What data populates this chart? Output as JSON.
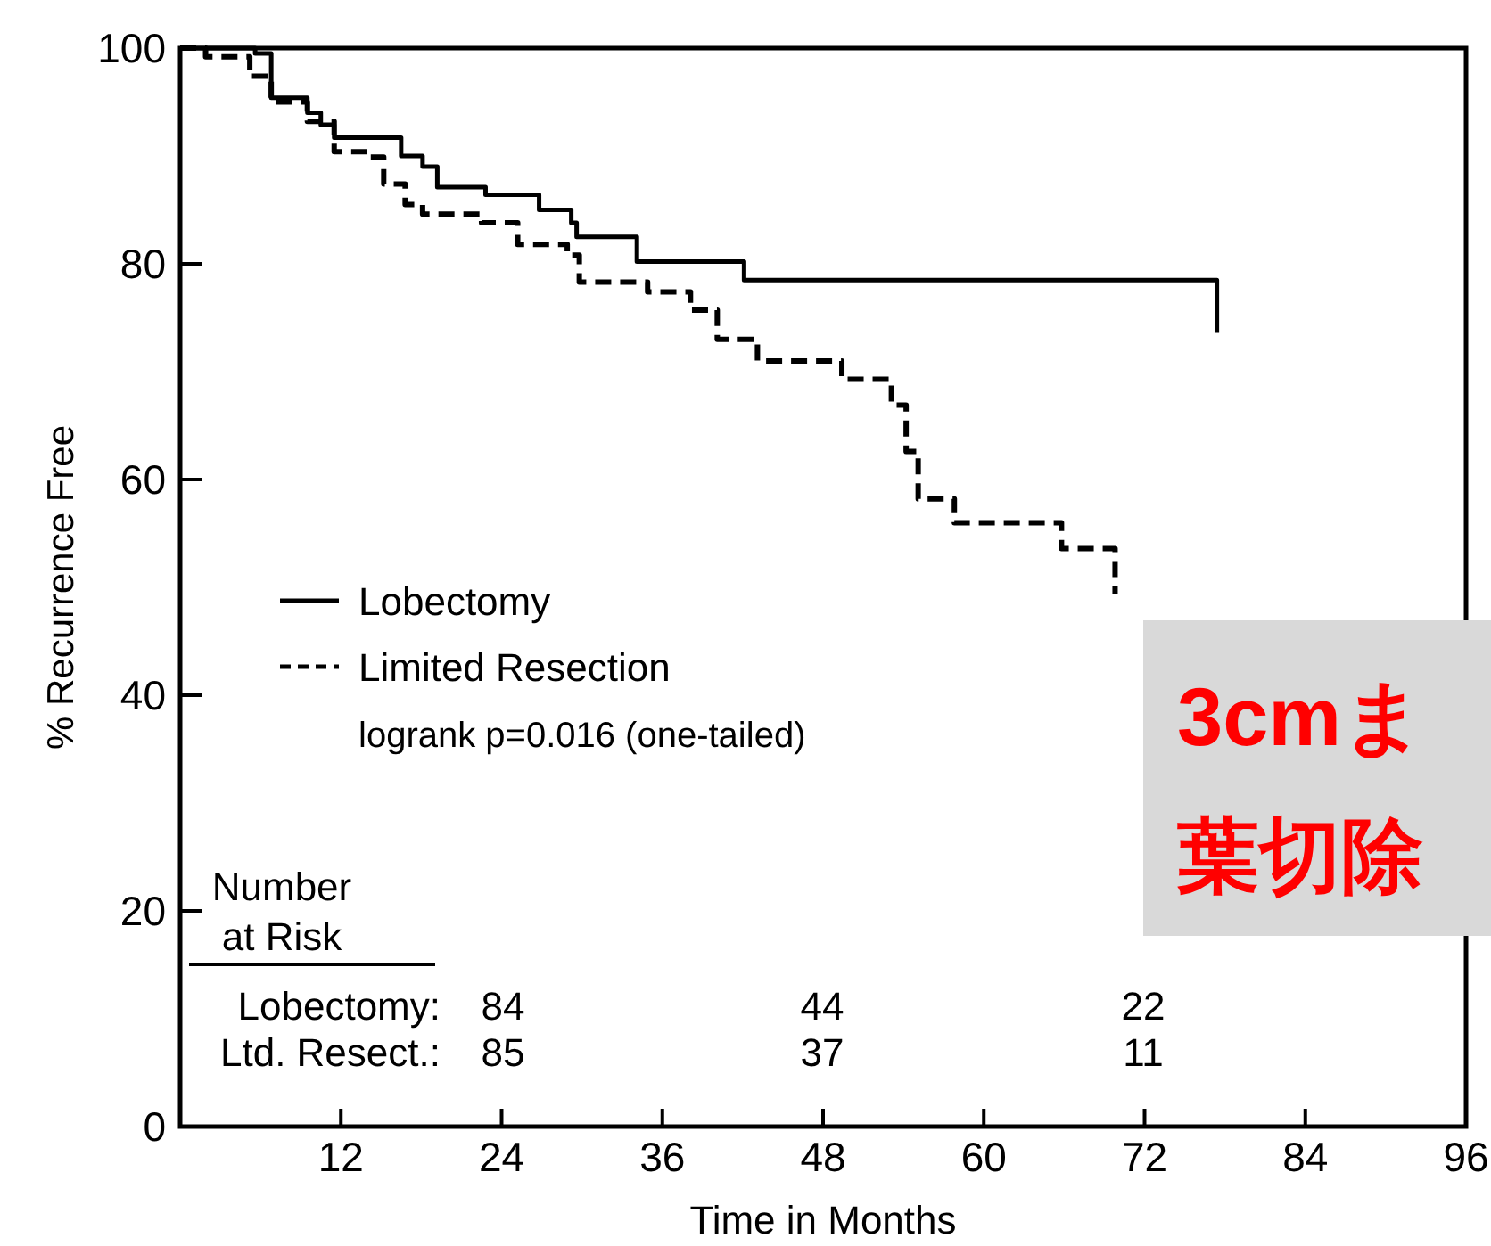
{
  "chart_data": {
    "type": "step",
    "xlabel": "Time in Months",
    "ylabel": "% Recurrence Free",
    "xlim": [
      0,
      96
    ],
    "ylim": [
      0,
      100
    ],
    "xticks": [
      12,
      24,
      36,
      48,
      60,
      72,
      84,
      96
    ],
    "yticks": [
      0,
      20,
      40,
      60,
      80,
      100
    ],
    "grid": false,
    "legend": "left",
    "series": [
      {
        "name": "Lobectomy",
        "color": "#000000",
        "line_style": "solid",
        "x": [
          0,
          5.6,
          6.8,
          9.5,
          10.5,
          11.5,
          16.5,
          18.1,
          19.2,
          22.8,
          26.8,
          29.2,
          29.6,
          34.1,
          42.1,
          77.4
        ],
        "values": [
          100,
          99.5,
          95.4,
          94,
          92.9,
          91.7,
          90,
          89,
          87.1,
          86.4,
          85,
          83.8,
          82.5,
          80.2,
          78.5,
          73.6
        ]
      },
      {
        "name": "Limited Resection",
        "color": "#000000",
        "line_style": "dashed",
        "x": [
          0,
          1.9,
          5.2,
          6.8,
          9.5,
          11.5,
          14.1,
          15.2,
          16.8,
          18.1,
          22.5,
          25.2,
          28.9,
          29.8,
          34.9,
          38.1,
          40.1,
          43.1,
          49.4,
          53.1,
          54.2,
          55.1,
          57.8,
          65.8,
          69.8
        ],
        "values": [
          100,
          99.2,
          97.4,
          95,
          93.2,
          90.4,
          89.9,
          87.4,
          85.5,
          84.6,
          83.8,
          81.8,
          80.8,
          78.3,
          77.4,
          75.7,
          73,
          71,
          69.3,
          66.9,
          62.6,
          58.2,
          56,
          53.6,
          49.4
        ]
      }
    ],
    "annotations": [
      "logrank p=0.016 (one-tailed)",
      "Number",
      "at Risk",
      "Lobectomy:",
      "Ltd. Resect.:",
      "84",
      "44",
      "22",
      "85",
      "37",
      "11",
      "3cmま",
      "葉切除"
    ]
  }
}
